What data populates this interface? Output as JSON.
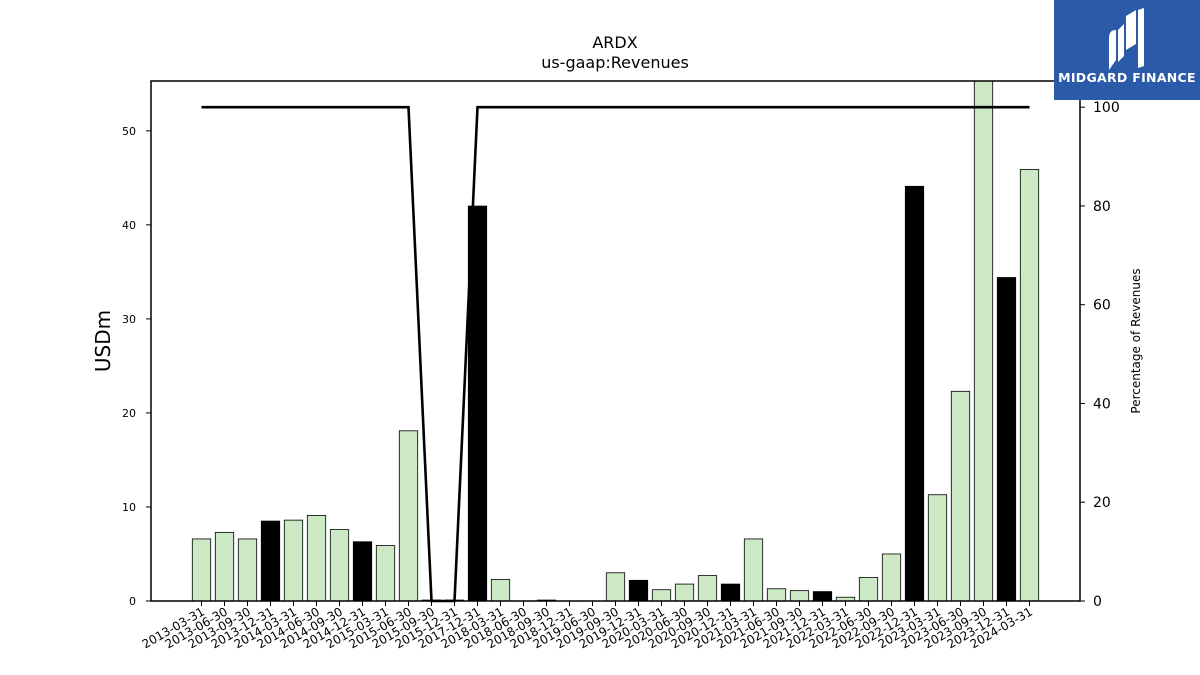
{
  "brand": {
    "name": "MIDGARD FINANCE",
    "icon": "midgard-logo-icon",
    "bg_color": "#2b5aa8"
  },
  "chart_data": {
    "type": "bar",
    "title": "ARDX",
    "subtitle": "us-gaap:Revenues",
    "ylabel": "USDm",
    "y2label": "Percentage of Revenues",
    "ylim": [
      0,
      55.3
    ],
    "y2lim": [
      0,
      105.3
    ],
    "yticks": [
      0,
      10,
      20,
      30,
      40,
      50
    ],
    "y2ticks": [
      0,
      20,
      40,
      60,
      80,
      100
    ],
    "colors": {
      "quarterly": "#cce8c5",
      "annual": "#000000",
      "line": "#000000"
    },
    "categories": [
      "2013-03-31",
      "2013-06-30",
      "2013-09-30",
      "2013-12-31",
      "2014-03-31",
      "2014-06-30",
      "2014-09-30",
      "2014-12-31",
      "2015-03-31",
      "2015-06-30",
      "2015-09-30",
      "2015-12-31",
      "2017-12-31",
      "2018-03-31",
      "2018-06-30",
      "2018-09-30",
      "2018-12-31",
      "2019-06-30",
      "2019-09-30",
      "2019-12-31",
      "2020-03-31",
      "2020-06-30",
      "2020-09-30",
      "2020-12-31",
      "2021-03-31",
      "2021-06-30",
      "2021-09-30",
      "2021-12-31",
      "2022-03-31",
      "2022-06-30",
      "2022-09-30",
      "2022-12-31",
      "2023-03-31",
      "2023-06-30",
      "2023-09-30",
      "2023-12-31",
      "2024-03-31"
    ],
    "series": [
      {
        "kind": "bar",
        "values": [
          6.6,
          7.3,
          6.6,
          8.5,
          8.6,
          9.1,
          7.6,
          6.3,
          5.9,
          18.1,
          0.1,
          0.1,
          42.0,
          2.3,
          0.0,
          0.1,
          0.0,
          0.0,
          3.0,
          2.2,
          1.2,
          1.8,
          2.7,
          1.8,
          6.6,
          1.3,
          1.1,
          1.0,
          0.4,
          2.5,
          5.0,
          44.1,
          11.3,
          22.3,
          55.3,
          34.4,
          45.9
        ],
        "annual": [
          false,
          false,
          false,
          true,
          false,
          false,
          false,
          true,
          false,
          false,
          false,
          false,
          true,
          false,
          false,
          false,
          false,
          false,
          false,
          true,
          false,
          false,
          false,
          true,
          false,
          false,
          false,
          true,
          false,
          false,
          false,
          true,
          false,
          false,
          false,
          true,
          false
        ]
      },
      {
        "kind": "line",
        "axis": "right",
        "values": [
          100,
          100,
          100,
          100,
          100,
          100,
          100,
          100,
          100,
          100,
          0,
          0,
          100,
          100,
          100,
          100,
          100,
          100,
          100,
          100,
          100,
          100,
          100,
          100,
          100,
          100,
          100,
          100,
          100,
          100,
          100,
          100,
          100,
          100,
          100,
          100,
          100
        ]
      }
    ]
  }
}
